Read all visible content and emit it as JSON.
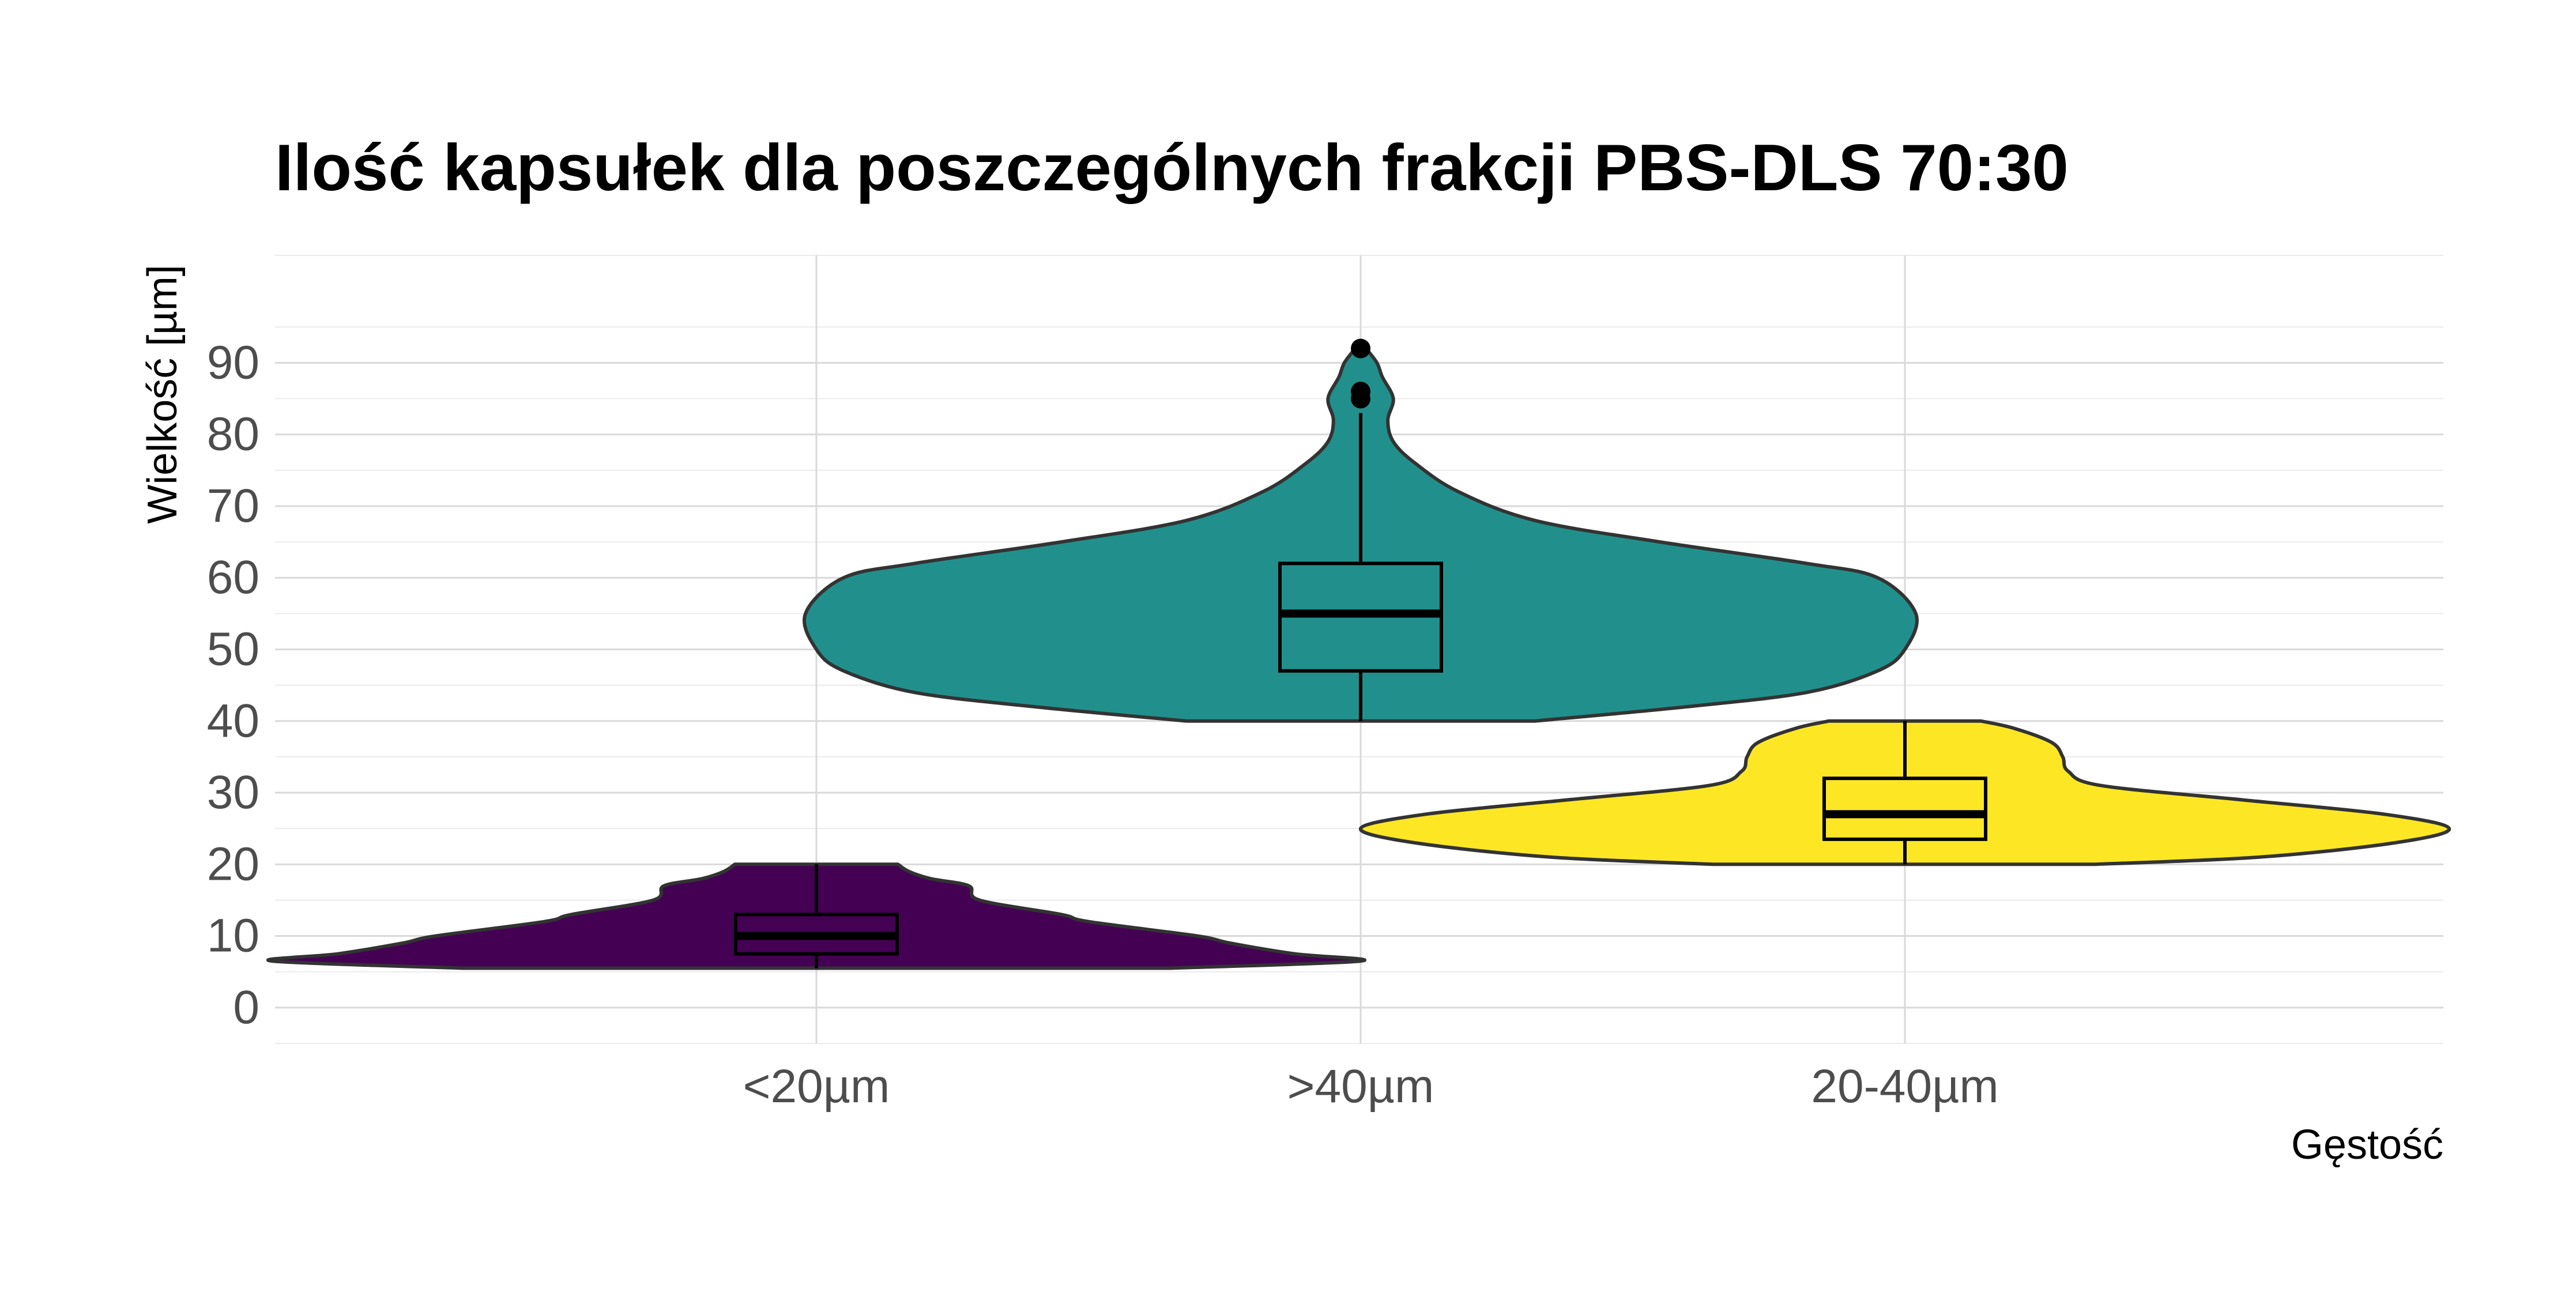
{
  "chart_data": {
    "type": "violin",
    "title": "Ilość kapsułek dla poszczególnych frakcji PBS-DLS 70:30",
    "xlabel": "Gęstość",
    "ylabel": "Wielkość [µm]",
    "ylim": [
      -5,
      105
    ],
    "yticks": [
      0,
      10,
      20,
      30,
      40,
      50,
      60,
      70,
      80,
      90
    ],
    "ytick_labels": [
      "0",
      "10",
      "20",
      "30",
      "40",
      "50",
      "60",
      "70",
      "80",
      "90"
    ],
    "categories": [
      "<20µm",
      ">40µm",
      "20-40µm"
    ],
    "grid": true,
    "legend": "none",
    "series": [
      {
        "category": "<20µm",
        "color": "#440154",
        "min": 5.5,
        "max": 20,
        "boxplot": {
          "lower_whisker": 5.5,
          "q1": 7.5,
          "median": 10,
          "q3": 13,
          "upper_whisker": 20
        },
        "outliers": [],
        "density_profile": [
          [
            5.5,
            0.65
          ],
          [
            6.5,
            1.0
          ],
          [
            7.5,
            0.88
          ],
          [
            9,
            0.76
          ],
          [
            10,
            0.7
          ],
          [
            12,
            0.5
          ],
          [
            13,
            0.45
          ],
          [
            15,
            0.3
          ],
          [
            17,
            0.28
          ],
          [
            18,
            0.21
          ],
          [
            19,
            0.17
          ],
          [
            20,
            0.15
          ]
        ]
      },
      {
        "category": ">40µm",
        "color": "#21908c",
        "min": 40,
        "max": 92,
        "boxplot": {
          "lower_whisker": 40,
          "q1": 47,
          "median": 55,
          "q3": 62,
          "upper_whisker": 83
        },
        "outliers": [
          85,
          86,
          92
        ],
        "density_profile": [
          [
            40,
            0.32
          ],
          [
            42,
            0.6
          ],
          [
            44,
            0.82
          ],
          [
            47,
            0.95
          ],
          [
            50,
            1.0
          ],
          [
            55,
            1.02
          ],
          [
            60,
            0.95
          ],
          [
            62,
            0.82
          ],
          [
            65,
            0.55
          ],
          [
            68,
            0.32
          ],
          [
            72,
            0.18
          ],
          [
            76,
            0.1
          ],
          [
            79,
            0.06
          ],
          [
            82,
            0.05
          ],
          [
            85,
            0.06
          ],
          [
            88,
            0.04
          ],
          [
            90,
            0.03
          ],
          [
            92,
            0.01
          ]
        ]
      },
      {
        "category": "20-40µm",
        "color": "#fde725",
        "min": 20,
        "max": 40,
        "boxplot": {
          "lower_whisker": 20,
          "q1": 23.5,
          "median": 27,
          "q3": 32,
          "upper_whisker": 40
        },
        "outliers": [],
        "density_profile": [
          [
            20,
            0.35
          ],
          [
            21,
            0.65
          ],
          [
            23,
            0.9
          ],
          [
            25,
            1.0
          ],
          [
            27,
            0.88
          ],
          [
            29,
            0.62
          ],
          [
            31,
            0.36
          ],
          [
            33,
            0.3
          ],
          [
            35,
            0.29
          ],
          [
            37,
            0.27
          ],
          [
            39,
            0.2
          ],
          [
            40,
            0.14
          ]
        ]
      }
    ]
  }
}
